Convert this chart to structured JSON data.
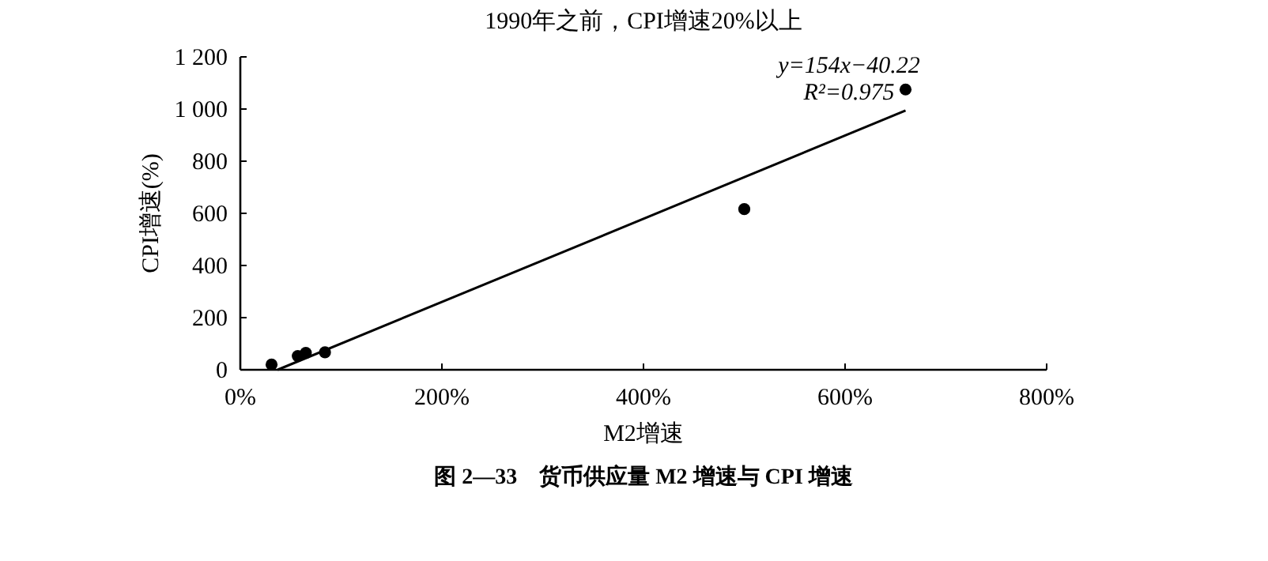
{
  "chart_data": {
    "type": "scatter",
    "title": "1990年之前，CPI增速20%以上",
    "xlabel": "M2增速",
    "ylabel": "CPI增速(%)",
    "annotations": [
      "y=154x−40.22",
      "R²=0.975",
      "图 2—33　货币供应量 M2 增速与 CPI 增速"
    ],
    "series": [
      {
        "color": "#000000",
        "marker": "circle",
        "x": [
          31,
          57,
          65,
          84,
          500,
          660
        ],
        "values": [
          20,
          53,
          65,
          67,
          616,
          1075
        ]
      },
      {
        "type": "line",
        "color": "#000000",
        "x": [
          37,
          660
        ],
        "values": [
          0,
          994
        ]
      }
    ],
    "xlim": [
      0,
      800
    ],
    "xticks": [
      {
        "value": 0,
        "label": "0%"
      },
      {
        "value": 200,
        "label": "200%"
      },
      {
        "value": 400,
        "label": "400%"
      },
      {
        "value": 600,
        "label": "600%"
      },
      {
        "value": 800,
        "label": "800%"
      }
    ],
    "ylim": [
      0,
      1200
    ],
    "yticks": [
      0,
      200,
      400,
      600,
      800,
      {
        "value": 1000,
        "label": "1 000"
      },
      {
        "value": 1200,
        "label": "1 200"
      }
    ]
  }
}
